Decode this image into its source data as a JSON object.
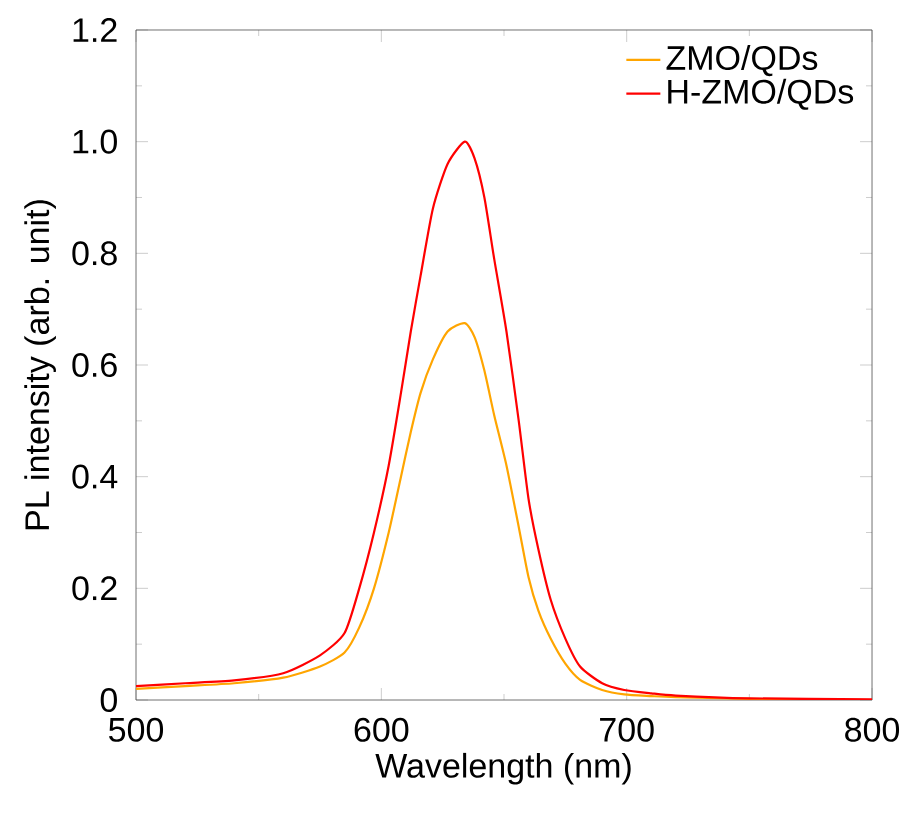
{
  "chart_data": {
    "type": "line",
    "xlabel": "Wavelength (nm)",
    "ylabel": "PL intensity (arb. unit)",
    "xlim": [
      500,
      800
    ],
    "ylim": [
      0,
      1.2
    ],
    "xticks": [
      500,
      600,
      700,
      800
    ],
    "yticks": [
      0,
      0.2,
      0.4,
      0.6,
      0.8,
      {
        "value": 1.0,
        "label": "1.0"
      },
      1.2
    ],
    "legend": "top right",
    "grid": false,
    "marker": "none",
    "line_style": "solid",
    "series": [
      {
        "name": "ZMO/QDs",
        "color": "#ffa500",
        "x": [
          500,
          520,
          540,
          560,
          575,
          585,
          591,
          597,
          603,
          608,
          612,
          616,
          621,
          627,
          634,
          638,
          642,
          646,
          651,
          656,
          660,
          664,
          669,
          675,
          681,
          690,
          699,
          710,
          720,
          750,
          800
        ],
        "values": [
          0.02,
          0.025,
          0.03,
          0.04,
          0.06,
          0.085,
          0.13,
          0.2,
          0.3,
          0.4,
          0.48,
          0.55,
          0.61,
          0.66,
          0.675,
          0.65,
          0.59,
          0.51,
          0.42,
          0.31,
          0.22,
          0.16,
          0.11,
          0.065,
          0.036,
          0.018,
          0.01,
          0.007,
          0.005,
          0.002,
          0.0
        ]
      },
      {
        "name": "H-ZMO/QDs",
        "color": "#ff0000",
        "x": [
          500,
          520,
          540,
          560,
          575,
          585,
          591,
          597,
          603,
          608,
          612,
          616,
          621,
          627,
          634,
          638,
          642,
          646,
          651,
          656,
          660,
          664,
          669,
          675,
          681,
          690,
          699,
          710,
          720,
          750,
          800
        ],
        "values": [
          0.025,
          0.03,
          0.035,
          0.048,
          0.08,
          0.12,
          0.2,
          0.3,
          0.42,
          0.55,
          0.66,
          0.76,
          0.88,
          0.96,
          1.0,
          0.97,
          0.9,
          0.79,
          0.66,
          0.5,
          0.36,
          0.27,
          0.18,
          0.11,
          0.06,
          0.03,
          0.018,
          0.012,
          0.008,
          0.003,
          0.001
        ]
      }
    ]
  }
}
